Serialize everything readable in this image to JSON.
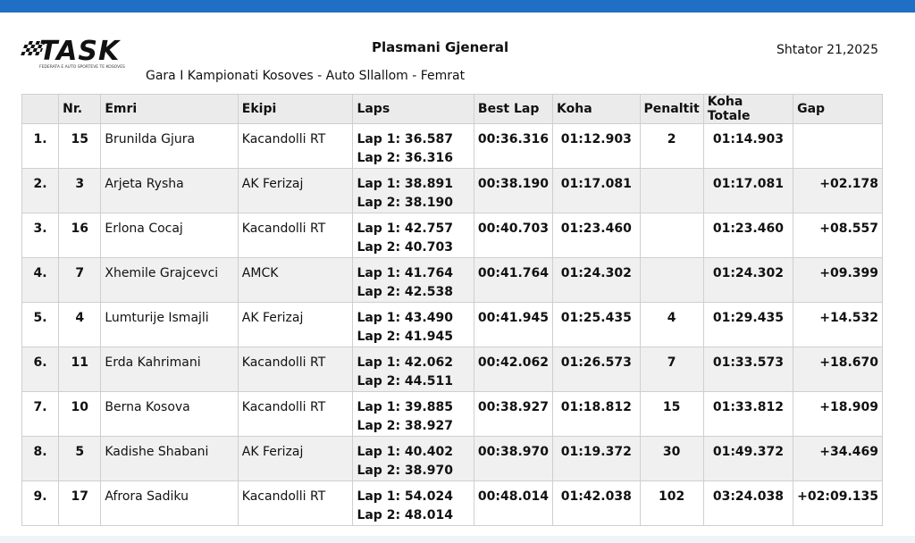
{
  "header": {
    "logo_text": "TASK",
    "logo_subtext": "FEDERATA E AUTO SPORTEVE TE KOSOVES",
    "title": "Plasmani Gjeneral",
    "subtitle": "Gara I Kampionati Kosoves - Auto Sllallom - Femrat",
    "date": "Shtator 21,2025"
  },
  "table": {
    "headers": [
      "",
      "Nr.",
      "Emri",
      "Ekipi",
      "Laps",
      "Best Lap",
      "Koha",
      "Penaltit",
      "Koha Totale",
      "Gap"
    ],
    "rows": [
      {
        "pos": "1.",
        "nr": "15",
        "name": "Brunilda Gjura",
        "team": "Kacandolli RT",
        "lap1": "Lap 1: 36.587",
        "lap2": "Lap 2: 36.316",
        "best": "00:36.316",
        "time": "01:12.903",
        "penalty": "2",
        "total": "01:14.903",
        "gap": ""
      },
      {
        "pos": "2.",
        "nr": "3",
        "name": "Arjeta Rysha",
        "team": "AK  Ferizaj",
        "lap1": "Lap 1: 38.891",
        "lap2": "Lap 2: 38.190",
        "best": "00:38.190",
        "time": "01:17.081",
        "penalty": "",
        "total": "01:17.081",
        "gap": "+02.178"
      },
      {
        "pos": "3.",
        "nr": "16",
        "name": "Erlona Cocaj",
        "team": "Kacandolli RT",
        "lap1": "Lap 1: 42.757",
        "lap2": "Lap 2: 40.703",
        "best": "00:40.703",
        "time": "01:23.460",
        "penalty": "",
        "total": "01:23.460",
        "gap": "+08.557"
      },
      {
        "pos": "4.",
        "nr": "7",
        "name": "Xhemile Grajcevci",
        "team": "AMCK",
        "lap1": "Lap 1: 41.764",
        "lap2": "Lap 2: 42.538",
        "best": "00:41.764",
        "time": "01:24.302",
        "penalty": "",
        "total": "01:24.302",
        "gap": "+09.399"
      },
      {
        "pos": "5.",
        "nr": "4",
        "name": "Lumturije Ismajli",
        "team": "AK  Ferizaj",
        "lap1": "Lap 1: 43.490",
        "lap2": "Lap 2: 41.945",
        "best": "00:41.945",
        "time": "01:25.435",
        "penalty": "4",
        "total": "01:29.435",
        "gap": "+14.532"
      },
      {
        "pos": "6.",
        "nr": "11",
        "name": "Erda Kahrimani",
        "team": "Kacandolli RT",
        "lap1": "Lap 1: 42.062",
        "lap2": "Lap 2: 44.511",
        "best": "00:42.062",
        "time": "01:26.573",
        "penalty": "7",
        "total": "01:33.573",
        "gap": "+18.670"
      },
      {
        "pos": "7.",
        "nr": "10",
        "name": "Berna Kosova",
        "team": "Kacandolli RT",
        "lap1": "Lap 1: 39.885",
        "lap2": "Lap 2: 38.927",
        "best": "00:38.927",
        "time": "01:18.812",
        "penalty": "15",
        "total": "01:33.812",
        "gap": "+18.909"
      },
      {
        "pos": "8.",
        "nr": "5",
        "name": "Kadishe Shabani",
        "team": "AK  Ferizaj",
        "lap1": "Lap 1: 40.402",
        "lap2": "Lap 2: 38.970",
        "best": "00:38.970",
        "time": "01:19.372",
        "penalty": "30",
        "total": "01:49.372",
        "gap": "+34.469"
      },
      {
        "pos": "9.",
        "nr": "17",
        "name": "Afrora Sadiku",
        "team": "Kacandolli RT",
        "lap1": "Lap 1: 54.024",
        "lap2": "Lap 2: 48.014",
        "best": "00:48.014",
        "time": "01:42.038",
        "penalty": "102",
        "total": "03:24.038",
        "gap": "+02:09.135"
      }
    ]
  },
  "colors": {
    "top_bar": "#1f6fc5",
    "header_bg": "#ebebeb",
    "alt_row_bg": "#f0f0f0"
  }
}
